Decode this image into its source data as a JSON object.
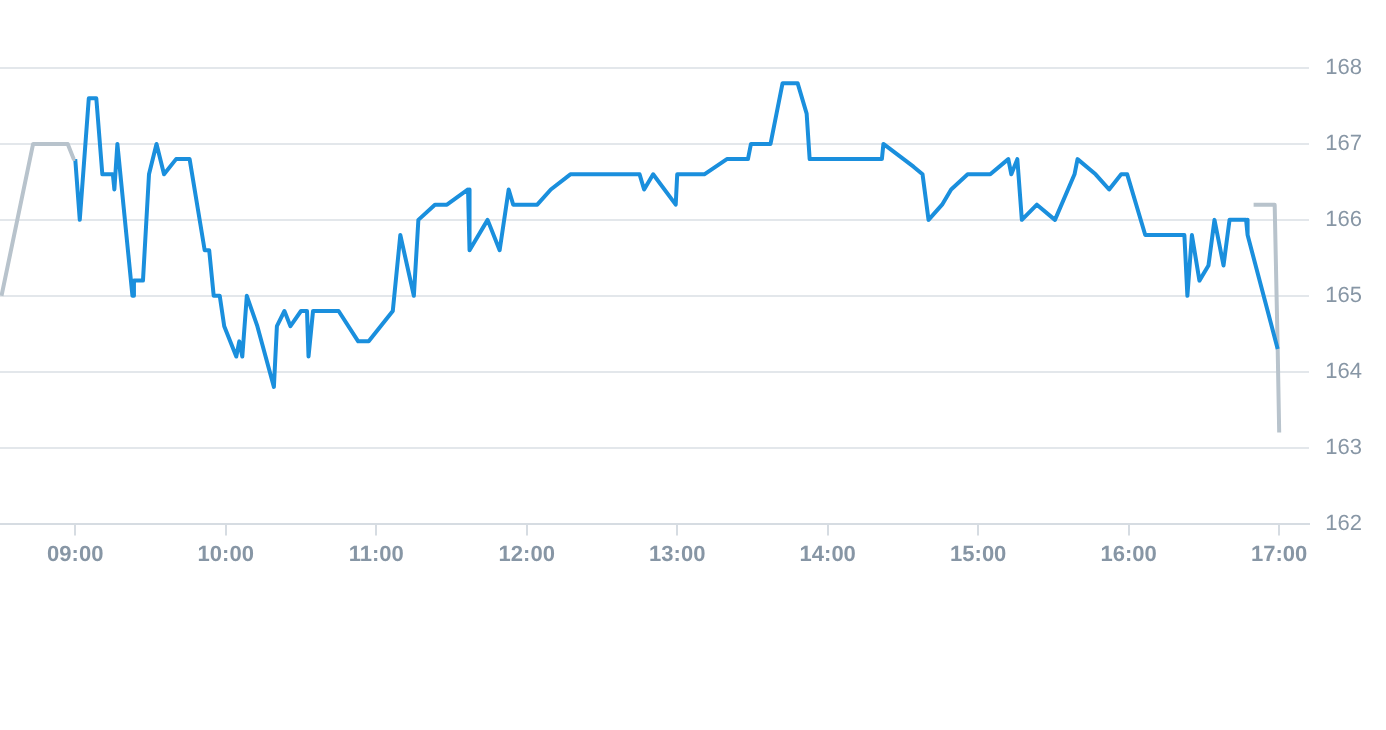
{
  "chart_data": {
    "type": "line",
    "xlim": [
      8.5,
      17.2
    ],
    "ylim": [
      162,
      168
    ],
    "xticks": [
      {
        "value": 9,
        "label": "09:00"
      },
      {
        "value": 10,
        "label": "10:00"
      },
      {
        "value": 11,
        "label": "11:00"
      },
      {
        "value": 12,
        "label": "12:00"
      },
      {
        "value": 13,
        "label": "13:00"
      },
      {
        "value": 14,
        "label": "14:00"
      },
      {
        "value": 15,
        "label": "15:00"
      },
      {
        "value": 16,
        "label": "16:00"
      },
      {
        "value": 17,
        "label": "17:00"
      }
    ],
    "yticks": [
      162,
      163,
      164,
      165,
      166,
      167,
      168
    ],
    "grid": "y",
    "legend": false,
    "marker": "none",
    "line_style": "solid",
    "series": [
      {
        "color": "#b8c3cc",
        "x": [
          8.51,
          8.72,
          8.95,
          8.99,
          9.0
        ],
        "values": [
          165.0,
          167.0,
          167.0,
          166.8,
          166.8
        ]
      },
      {
        "color": "#1a8fdd",
        "x": [
          9.0,
          9.03,
          9.09,
          9.14,
          9.18,
          9.25,
          9.26,
          9.28,
          9.38,
          9.39,
          9.45,
          9.49,
          9.54,
          9.59,
          9.67,
          9.76,
          9.86,
          9.89,
          9.92,
          9.96,
          9.99,
          10.07,
          10.09,
          10.11,
          10.14,
          10.21,
          10.32,
          10.34,
          10.39,
          10.43,
          10.5,
          10.54,
          10.55,
          10.58,
          10.75,
          10.88,
          10.95,
          11.11,
          11.16,
          11.25,
          11.28,
          11.39,
          11.47,
          11.61,
          11.62,
          11.74,
          11.82,
          11.88,
          11.91,
          12.07,
          12.16,
          12.29,
          12.75,
          12.78,
          12.84,
          12.99,
          13.0,
          13.18,
          13.33,
          13.47,
          13.49,
          13.62,
          13.7,
          13.8,
          13.86,
          13.88,
          14.36,
          14.37,
          14.57,
          14.63,
          14.67,
          14.76,
          14.82,
          14.93,
          15.08,
          15.2,
          15.22,
          15.26,
          15.29,
          15.39,
          15.51,
          15.64,
          15.66,
          15.78,
          15.87,
          15.95,
          15.99,
          16.11,
          16.37,
          16.39,
          16.42,
          16.47,
          16.53,
          16.57,
          16.63,
          16.67,
          16.78,
          16.79,
          16.99
        ],
        "values": [
          166.8,
          166.0,
          167.6,
          167.6,
          166.6,
          166.6,
          166.4,
          167.0,
          165.0,
          165.2,
          165.2,
          166.6,
          167.0,
          166.6,
          166.8,
          166.8,
          165.6,
          165.6,
          165.0,
          165.0,
          164.6,
          164.2,
          164.4,
          164.2,
          165.0,
          164.6,
          163.8,
          164.6,
          164.8,
          164.6,
          164.8,
          164.8,
          164.2,
          164.8,
          164.8,
          164.4,
          164.4,
          164.8,
          165.8,
          165.0,
          166.0,
          166.2,
          166.2,
          166.4,
          165.6,
          166.0,
          165.6,
          166.4,
          166.2,
          166.2,
          166.4,
          166.6,
          166.6,
          166.4,
          166.6,
          166.2,
          166.6,
          166.6,
          166.8,
          166.8,
          167.0,
          167.0,
          167.8,
          167.8,
          167.4,
          166.8,
          166.8,
          167.0,
          166.7,
          166.6,
          166.0,
          166.2,
          166.4,
          166.6,
          166.6,
          166.8,
          166.6,
          166.8,
          166.0,
          166.2,
          166.0,
          166.6,
          166.8,
          166.6,
          166.4,
          166.6,
          166.6,
          165.8,
          165.8,
          165.0,
          165.8,
          165.2,
          165.4,
          166.0,
          165.4,
          166.0,
          166.0,
          165.8,
          164.3
        ]
      },
      {
        "color": "#b8c3cc",
        "x": [
          16.83,
          16.97,
          16.99,
          17.0
        ],
        "values": [
          166.2,
          166.2,
          164.3,
          163.2
        ]
      }
    ]
  }
}
